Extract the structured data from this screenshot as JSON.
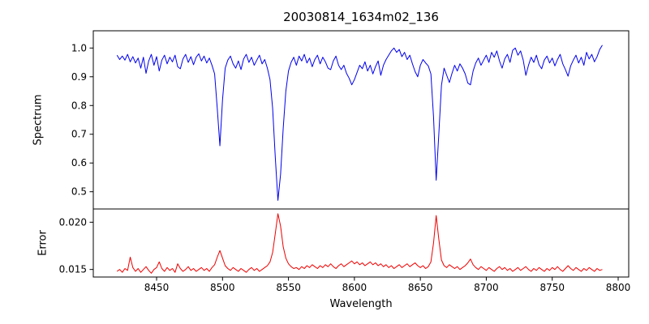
{
  "figure": {
    "title": "20030814_1634m02_136"
  },
  "colors": {
    "background": "#ffffff",
    "axis": "#000000",
    "spectrum_line": "#0000ee",
    "error_line": "#ee0000"
  },
  "chart_data": {
    "type": "line",
    "title": "20030814_1634m02_136",
    "xlabel": "Wavelength",
    "xlim": [
      8402,
      8808
    ],
    "xticks": [
      8450,
      8500,
      8550,
      8600,
      8650,
      8700,
      8750,
      8800
    ],
    "xtick_labels": [
      "8450",
      "8500",
      "8550",
      "8600",
      "8650",
      "8700",
      "8750",
      "8800"
    ],
    "x_start": 8420,
    "x_step": 2,
    "panels": [
      {
        "name": "spectrum",
        "ylabel": "Spectrum",
        "color": "#0000ee",
        "ylim": [
          0.44,
          1.06
        ],
        "yticks": [
          0.5,
          0.6,
          0.7,
          0.8,
          0.9,
          1.0
        ],
        "ytick_labels": [
          "0.5",
          "0.6",
          "0.7",
          "0.8",
          "0.9",
          "1.0"
        ],
        "values": [
          0.975,
          0.96,
          0.972,
          0.958,
          0.978,
          0.952,
          0.97,
          0.948,
          0.965,
          0.93,
          0.968,
          0.912,
          0.955,
          0.978,
          0.94,
          0.97,
          0.92,
          0.958,
          0.975,
          0.945,
          0.968,
          0.952,
          0.975,
          0.935,
          0.928,
          0.962,
          0.978,
          0.95,
          0.97,
          0.942,
          0.968,
          0.98,
          0.955,
          0.972,
          0.948,
          0.965,
          0.94,
          0.91,
          0.79,
          0.66,
          0.82,
          0.93,
          0.958,
          0.972,
          0.945,
          0.93,
          0.955,
          0.925,
          0.962,
          0.978,
          0.95,
          0.968,
          0.94,
          0.958,
          0.975,
          0.945,
          0.96,
          0.93,
          0.89,
          0.79,
          0.62,
          0.47,
          0.56,
          0.72,
          0.85,
          0.92,
          0.95,
          0.968,
          0.94,
          0.972,
          0.955,
          0.978,
          0.948,
          0.965,
          0.935,
          0.96,
          0.975,
          0.945,
          0.968,
          0.952,
          0.93,
          0.925,
          0.955,
          0.972,
          0.94,
          0.925,
          0.94,
          0.912,
          0.895,
          0.872,
          0.89,
          0.915,
          0.94,
          0.928,
          0.952,
          0.92,
          0.94,
          0.91,
          0.935,
          0.955,
          0.905,
          0.94,
          0.96,
          0.975,
          0.99,
          1.0,
          0.985,
          0.995,
          0.97,
          0.985,
          0.96,
          0.975,
          0.945,
          0.918,
          0.9,
          0.94,
          0.96,
          0.948,
          0.938,
          0.91,
          0.76,
          0.54,
          0.7,
          0.87,
          0.93,
          0.905,
          0.88,
          0.912,
          0.94,
          0.92,
          0.945,
          0.93,
          0.91,
          0.878,
          0.872,
          0.92,
          0.948,
          0.965,
          0.94,
          0.958,
          0.975,
          0.95,
          0.985,
          0.968,
          0.99,
          0.955,
          0.93,
          0.962,
          0.978,
          0.95,
          0.992,
          1.0,
          0.975,
          0.99,
          0.958,
          0.905,
          0.94,
          0.968,
          0.95,
          0.975,
          0.942,
          0.928,
          0.958,
          0.972,
          0.948,
          0.965,
          0.938,
          0.96,
          0.978,
          0.945,
          0.925,
          0.902,
          0.938,
          0.958,
          0.975,
          0.948,
          0.968,
          0.94,
          0.985,
          0.962,
          0.978,
          0.952,
          0.97,
          0.995,
          1.01
        ]
      },
      {
        "name": "error",
        "ylabel": "Error",
        "color": "#ee0000",
        "ylim": [
          0.0142,
          0.0214
        ],
        "yticks": [
          0.015,
          0.02
        ],
        "ytick_labels": [
          "0.015",
          "0.020"
        ],
        "values": [
          0.0148,
          0.015,
          0.0147,
          0.0151,
          0.0149,
          0.0163,
          0.0152,
          0.0148,
          0.0151,
          0.0147,
          0.015,
          0.0153,
          0.0149,
          0.0146,
          0.015,
          0.0152,
          0.0158,
          0.0151,
          0.0148,
          0.0152,
          0.0149,
          0.0151,
          0.0147,
          0.0156,
          0.0151,
          0.0148,
          0.015,
          0.0153,
          0.0149,
          0.0151,
          0.0148,
          0.015,
          0.0152,
          0.0149,
          0.0151,
          0.0148,
          0.0152,
          0.0155,
          0.0163,
          0.017,
          0.0162,
          0.0154,
          0.0151,
          0.0149,
          0.0152,
          0.015,
          0.0148,
          0.0151,
          0.0149,
          0.0147,
          0.015,
          0.0152,
          0.0149,
          0.0151,
          0.0148,
          0.015,
          0.0152,
          0.0154,
          0.0158,
          0.0168,
          0.0188,
          0.0209,
          0.0196,
          0.0174,
          0.0162,
          0.0156,
          0.0153,
          0.0151,
          0.0152,
          0.015,
          0.0153,
          0.0151,
          0.0154,
          0.0152,
          0.0155,
          0.0153,
          0.0151,
          0.0154,
          0.0152,
          0.0155,
          0.0153,
          0.0156,
          0.0153,
          0.0151,
          0.0154,
          0.0156,
          0.0153,
          0.0155,
          0.0157,
          0.0159,
          0.0156,
          0.0158,
          0.0155,
          0.0157,
          0.0154,
          0.0156,
          0.0158,
          0.0155,
          0.0157,
          0.0154,
          0.0156,
          0.0153,
          0.0155,
          0.0152,
          0.0154,
          0.0151,
          0.0153,
          0.0155,
          0.0152,
          0.0154,
          0.0156,
          0.0153,
          0.0155,
          0.0157,
          0.0154,
          0.0152,
          0.0154,
          0.0151,
          0.0153,
          0.0158,
          0.0178,
          0.0207,
          0.0182,
          0.016,
          0.0154,
          0.0152,
          0.0155,
          0.0153,
          0.0151,
          0.0153,
          0.015,
          0.0152,
          0.0154,
          0.0157,
          0.0161,
          0.0155,
          0.0152,
          0.015,
          0.0153,
          0.0151,
          0.0149,
          0.0152,
          0.015,
          0.0148,
          0.0151,
          0.0153,
          0.015,
          0.0152,
          0.0149,
          0.0151,
          0.0148,
          0.015,
          0.0152,
          0.0149,
          0.0151,
          0.0153,
          0.015,
          0.0148,
          0.0151,
          0.0149,
          0.0152,
          0.015,
          0.0148,
          0.0151,
          0.0149,
          0.0152,
          0.015,
          0.0153,
          0.015,
          0.0148,
          0.0151,
          0.0154,
          0.0151,
          0.0149,
          0.0152,
          0.015,
          0.0148,
          0.0151,
          0.0149,
          0.0152,
          0.015,
          0.0148,
          0.0151,
          0.0149,
          0.015
        ]
      }
    ]
  }
}
